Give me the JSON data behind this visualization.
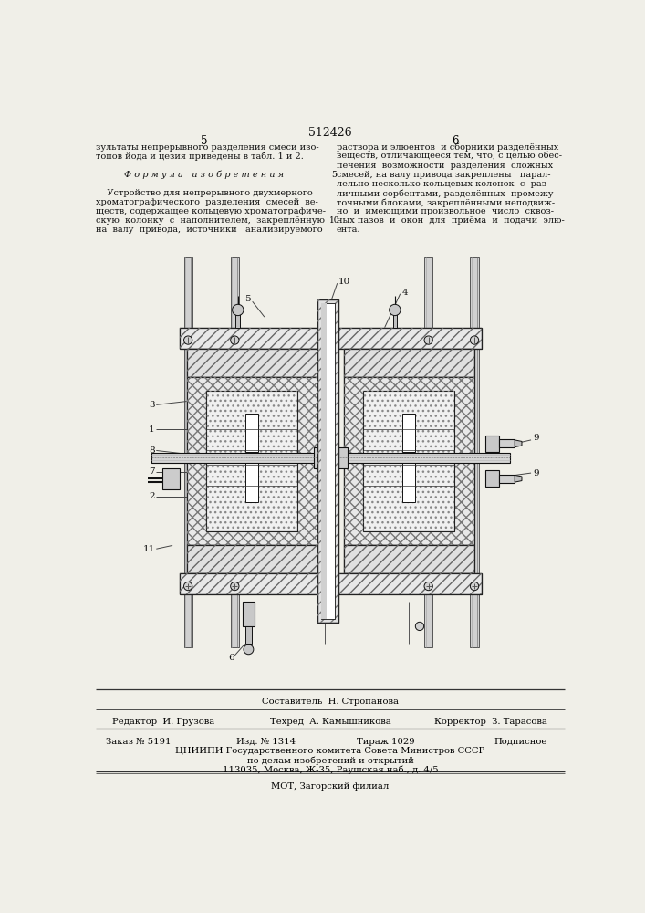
{
  "bg_color": "#f0efe8",
  "title": "512426",
  "page_left": "5",
  "page_right": "6",
  "left_col_text": [
    "зультаты непрерывного разделения смеси изо-",
    "топов йода и цезия приведены в табл. 1 и 2.",
    "",
    "Ф о р м у л а   и з о б р е т е н и я",
    "",
    "    Устройство для непрерывного двухмерного",
    "хроматографического  разделения  смесей  ве-",
    "ществ, содержащее кольцевую хроматографиче-",
    "скую  колонку  с  наполнителем,  закреплённую",
    "на  валу  привода,  источники   анализируемого"
  ],
  "right_col_text": [
    "раствора и элюентов  и сборники разделённых",
    "веществ, отличающееся тем, что, с целью обес-",
    "печения  возможности  разделения  сложных",
    "смесей, на валу привода закреплены   парал-",
    "лельно несколько кольцевых колонок  с  раз-",
    "личными сорбентами, разделённых  промежу-",
    "точными блоками, закреплёнными неподвиж-",
    "но  и  имеющими произвольное  число  сквоз-",
    "ных пазов  и  окон  для  приёма  и  подачи  элю-",
    "ента."
  ],
  "footer_sestavitel": "Составитель  Н. Стропанова",
  "footer_redaktor": "Редактор  И. Грузова",
  "footer_tehred": "Техред  А. Камышникова",
  "footer_korrektor": "Корректор  З. Тарасова",
  "footer_zakaz": "Заказ № 5191",
  "footer_izd": "Изд. № 1314",
  "footer_tirazh": "Тираж 1029",
  "footer_podp": "Подписное",
  "footer_cniip1": "ЦНИИПИ Государственного комитета Совета Министров СССР",
  "footer_cniip2": "по делам изобретений и открытий",
  "footer_addr": "113035, Москва, Ж-35, Раушская наб., д. 4/5",
  "footer_mot": "МОТ, Загорский филиал"
}
